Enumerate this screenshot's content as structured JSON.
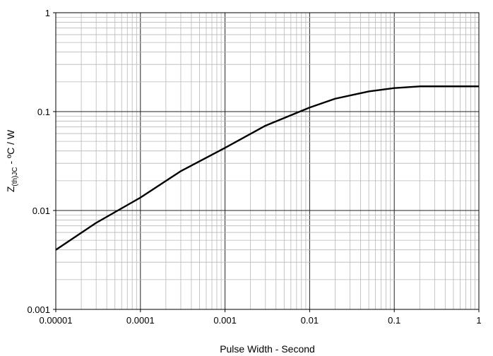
{
  "chart_data": {
    "type": "line",
    "title": "",
    "xlabel": "Pulse Width - Second",
    "ylabel": "Z(th)JC - ºC / W",
    "ylabel_parts": {
      "main": "Z",
      "subscript": "(th)JC",
      "rest": " - ºC / W"
    },
    "xscale": "log",
    "yscale": "log",
    "xlim": [
      1e-05,
      1
    ],
    "ylim": [
      0.001,
      1
    ],
    "grid": true,
    "legend": "none",
    "x_tick_labels": [
      "0.00001",
      "0.0001",
      "0.001",
      "0.01",
      "0.1",
      "1"
    ],
    "y_tick_labels": [
      "0.001",
      "0.01",
      "0.1",
      "1"
    ],
    "series": [
      {
        "color": "#000000",
        "x": [
          1e-05,
          3e-05,
          0.0001,
          0.0003,
          0.001,
          0.003,
          0.01,
          0.02,
          0.05,
          0.1,
          0.2,
          0.5,
          1
        ],
        "y": [
          0.004,
          0.0075,
          0.0135,
          0.025,
          0.043,
          0.072,
          0.11,
          0.135,
          0.16,
          0.173,
          0.18,
          0.18,
          0.18
        ]
      }
    ]
  }
}
